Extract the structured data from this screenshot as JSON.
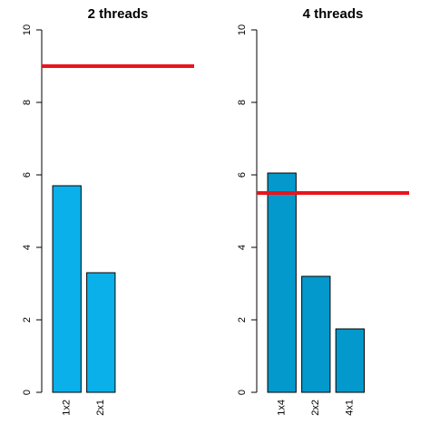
{
  "chart_data": [
    {
      "type": "bar",
      "title": "2 threads",
      "categories": [
        "1x2",
        "2x1"
      ],
      "values": [
        5.7,
        3.3
      ],
      "color": "#0ab0ea",
      "reference_line": 9.0,
      "reference_color": "#e8141c",
      "ylim": [
        0,
        10
      ],
      "yticks": [
        0,
        2,
        4,
        6,
        8,
        10
      ]
    },
    {
      "type": "bar",
      "title": "4 threads",
      "categories": [
        "1x4",
        "2x2",
        "4x1"
      ],
      "values": [
        6.05,
        3.2,
        1.75
      ],
      "color": "#0399cc",
      "reference_line": 5.5,
      "reference_color": "#e8141c",
      "ylim": [
        0,
        10
      ],
      "yticks": [
        0,
        2,
        4,
        6,
        8,
        10
      ]
    }
  ]
}
